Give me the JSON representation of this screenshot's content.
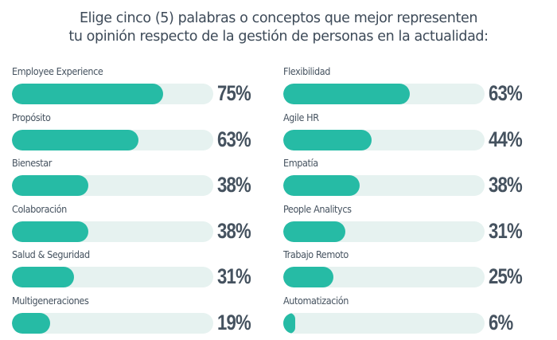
{
  "title_line1": "Elige cinco (5) palabras o conceptos que mejor representen",
  "title_line2": "tu opinión respecto de la gestión de personas en la actualidad:",
  "colors": {
    "fill": "#26bba5",
    "track": "#e6f2f0",
    "text": "#45525f"
  },
  "left": [
    {
      "label": "Employee Experience",
      "value": 75,
      "pct": "75%"
    },
    {
      "label": "Propósito",
      "value": 63,
      "pct": "63%"
    },
    {
      "label": "Bienestar",
      "value": 38,
      "pct": "38%"
    },
    {
      "label": "Colaboración",
      "value": 38,
      "pct": "38%"
    },
    {
      "label": "Salud & Seguridad",
      "value": 31,
      "pct": "31%"
    },
    {
      "label": "Multigeneraciones",
      "value": 19,
      "pct": "19%"
    }
  ],
  "right": [
    {
      "label": "Flexibilidad",
      "value": 63,
      "pct": "63%"
    },
    {
      "label": "Agile HR",
      "value": 44,
      "pct": "44%"
    },
    {
      "label": "Empatía",
      "value": 38,
      "pct": "38%"
    },
    {
      "label": "People Analitycs",
      "value": 31,
      "pct": "31%"
    },
    {
      "label": "Trabajo Remoto",
      "value": 25,
      "pct": "25%"
    },
    {
      "label": "Automatización",
      "value": 6,
      "pct": "6%"
    }
  ],
  "chart_data": {
    "type": "bar",
    "orientation": "horizontal",
    "title": "Elige cinco (5) palabras o conceptos que mejor representen tu opinión respecto de la gestión de personas en la actualidad:",
    "categories": [
      "Employee Experience",
      "Propósito",
      "Bienestar",
      "Colaboración",
      "Salud & Seguridad",
      "Multigeneraciones",
      "Flexibilidad",
      "Agile HR",
      "Empatía",
      "People Analitycs",
      "Trabajo Remoto",
      "Automatización"
    ],
    "values": [
      75,
      63,
      38,
      38,
      31,
      19,
      63,
      44,
      38,
      31,
      25,
      6
    ],
    "unit": "%",
    "xlim": [
      0,
      100
    ],
    "grid": false,
    "legend": "none"
  }
}
